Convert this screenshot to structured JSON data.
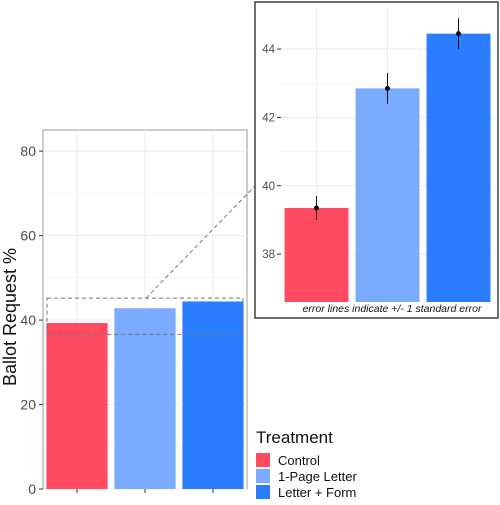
{
  "chart_data": [
    {
      "type": "bar",
      "categories": [
        "Control",
        "1-Page Letter",
        "Letter + Form"
      ],
      "values": [
        39.3,
        42.8,
        44.4
      ],
      "ylabel": "Ballot Request %",
      "ylim": [
        0,
        85
      ],
      "yticks": [
        0,
        20,
        40,
        60,
        80
      ],
      "grid": true
    },
    {
      "type": "bar",
      "categories": [
        "Control",
        "1-Page Letter",
        "Letter + Form"
      ],
      "values": [
        39.35,
        42.85,
        44.45
      ],
      "errors": [
        0.35,
        0.45,
        0.45
      ],
      "ylim": [
        36.6,
        45.2
      ],
      "yticks": [
        38,
        40,
        42,
        44
      ],
      "grid": true,
      "annotation": "error lines indicate +/- 1 standard error"
    }
  ],
  "legend": {
    "title": "Treatment",
    "placement": "bottom-right",
    "entries": [
      "Control",
      "1-Page Letter",
      "Letter + Form"
    ]
  },
  "colors": {
    "Control": "#FF4A5F",
    "1-Page Letter": "#7AABFF",
    "Letter + Form": "#2A7DFF",
    "grid": "#EBEBEB",
    "panel_border": "#999999",
    "inset_border": "#222222",
    "text": "#4D4D4D"
  }
}
